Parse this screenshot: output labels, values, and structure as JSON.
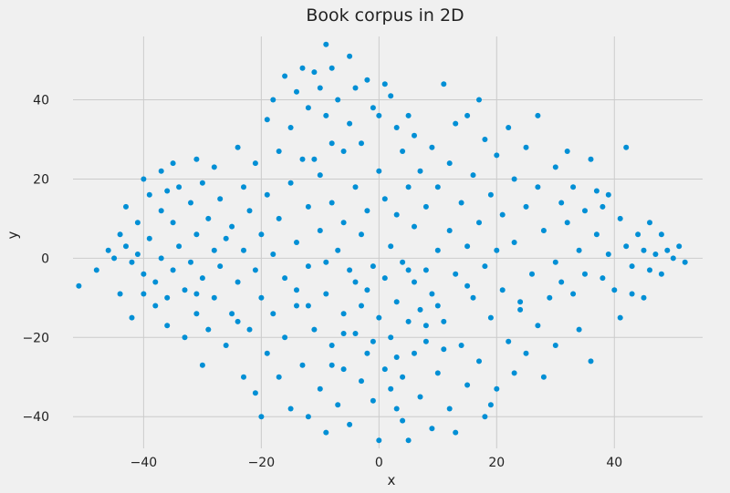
{
  "chart_data": {
    "type": "scatter",
    "title": "Book corpus in 2D",
    "xlabel": "x",
    "ylabel": "y",
    "xlim": [
      -52,
      55
    ],
    "ylim": [
      -48,
      56
    ],
    "xticks": [
      -40,
      -20,
      0,
      20,
      40
    ],
    "yticks": [
      -40,
      -20,
      0,
      20,
      40
    ],
    "xtick_labels": [
      "−40",
      "−20",
      "0",
      "20",
      "40"
    ],
    "ytick_labels": [
      "−40",
      "−20",
      "0",
      "20",
      "40"
    ],
    "grid": true,
    "colors": {
      "point": "#008fd5",
      "background": "#f0f0f0",
      "grid": "#cbcbcb"
    },
    "series": [
      {
        "points": [
          [
            -51,
            -7
          ],
          [
            -48,
            -3
          ],
          [
            -46,
            2
          ],
          [
            -45,
            0
          ],
          [
            -44,
            6
          ],
          [
            -44,
            -9
          ],
          [
            -43,
            13
          ],
          [
            -43,
            3
          ],
          [
            -42,
            -1
          ],
          [
            -42,
            -15
          ],
          [
            -41,
            9
          ],
          [
            -41,
            1
          ],
          [
            -40,
            20
          ],
          [
            -40,
            -4
          ],
          [
            -40,
            -9
          ],
          [
            -39,
            16
          ],
          [
            -39,
            5
          ],
          [
            -38,
            -6
          ],
          [
            -38,
            -12
          ],
          [
            -37,
            22
          ],
          [
            -37,
            12
          ],
          [
            -37,
            0
          ],
          [
            -36,
            -10
          ],
          [
            -36,
            -17
          ],
          [
            -35,
            24
          ],
          [
            -35,
            9
          ],
          [
            -35,
            -3
          ],
          [
            -34,
            18
          ],
          [
            -34,
            3
          ],
          [
            -33,
            -8
          ],
          [
            -33,
            -20
          ],
          [
            -32,
            14
          ],
          [
            -32,
            -1
          ],
          [
            -31,
            25
          ],
          [
            -31,
            6
          ],
          [
            -31,
            -14
          ],
          [
            -30,
            19
          ],
          [
            -30,
            -5
          ],
          [
            -30,
            -27
          ],
          [
            -29,
            10
          ],
          [
            -29,
            -18
          ],
          [
            -28,
            23
          ],
          [
            -28,
            2
          ],
          [
            -28,
            -10
          ],
          [
            -27,
            15
          ],
          [
            -27,
            -2
          ],
          [
            -26,
            -22
          ],
          [
            -25,
            8
          ],
          [
            -25,
            -14
          ],
          [
            -24,
            28
          ],
          [
            -24,
            -6
          ],
          [
            -23,
            18
          ],
          [
            -23,
            2
          ],
          [
            -23,
            -30
          ],
          [
            -22,
            12
          ],
          [
            -22,
            -18
          ],
          [
            -21,
            24
          ],
          [
            -21,
            -3
          ],
          [
            -21,
            -34
          ],
          [
            -20,
            6
          ],
          [
            -20,
            -10
          ],
          [
            -19,
            35
          ],
          [
            -19,
            16
          ],
          [
            -19,
            -24
          ],
          [
            -18,
            40
          ],
          [
            -18,
            1
          ],
          [
            -18,
            -14
          ],
          [
            -17,
            27
          ],
          [
            -17,
            10
          ],
          [
            -17,
            -30
          ],
          [
            -16,
            46
          ],
          [
            -16,
            -5
          ],
          [
            -16,
            -20
          ],
          [
            -15,
            33
          ],
          [
            -15,
            19
          ],
          [
            -15,
            -38
          ],
          [
            -14,
            42
          ],
          [
            -14,
            4
          ],
          [
            -14,
            -12
          ],
          [
            -13,
            48
          ],
          [
            -13,
            25
          ],
          [
            -13,
            -27
          ],
          [
            -12,
            38
          ],
          [
            -12,
            13
          ],
          [
            -12,
            -2
          ],
          [
            -12,
            -40
          ],
          [
            -11,
            47
          ],
          [
            -11,
            -18
          ],
          [
            -10,
            43
          ],
          [
            -10,
            21
          ],
          [
            -10,
            7
          ],
          [
            -10,
            -33
          ],
          [
            -9,
            54
          ],
          [
            -9,
            36
          ],
          [
            -9,
            -9
          ],
          [
            -9,
            -44
          ],
          [
            -8,
            48
          ],
          [
            -8,
            29
          ],
          [
            -8,
            14
          ],
          [
            -8,
            -22
          ],
          [
            -7,
            40
          ],
          [
            -7,
            2
          ],
          [
            -7,
            -37
          ],
          [
            -6,
            27
          ],
          [
            -6,
            9
          ],
          [
            -6,
            -14
          ],
          [
            -6,
            -28
          ],
          [
            -5,
            51
          ],
          [
            -5,
            34
          ],
          [
            -5,
            -3
          ],
          [
            -5,
            -42
          ],
          [
            -4,
            43
          ],
          [
            -4,
            18
          ],
          [
            -4,
            -19
          ],
          [
            -3,
            29
          ],
          [
            -3,
            6
          ],
          [
            -3,
            -31
          ],
          [
            -2,
            45
          ],
          [
            -2,
            12
          ],
          [
            -2,
            -8
          ],
          [
            -2,
            -24
          ],
          [
            -1,
            38
          ],
          [
            -1,
            -2
          ],
          [
            -1,
            -36
          ],
          [
            0,
            36
          ],
          [
            0,
            22
          ],
          [
            0,
            -15
          ],
          [
            0,
            -46
          ],
          [
            1,
            44
          ],
          [
            1,
            15
          ],
          [
            1,
            -5
          ],
          [
            1,
            -28
          ],
          [
            2,
            41
          ],
          [
            2,
            3
          ],
          [
            2,
            -20
          ],
          [
            3,
            33
          ],
          [
            3,
            11
          ],
          [
            3,
            -11
          ],
          [
            3,
            -38
          ],
          [
            4,
            27
          ],
          [
            4,
            -1
          ],
          [
            4,
            -30
          ],
          [
            5,
            36
          ],
          [
            5,
            18
          ],
          [
            5,
            -16
          ],
          [
            5,
            -46
          ],
          [
            6,
            8
          ],
          [
            6,
            -6
          ],
          [
            6,
            -24
          ],
          [
            7,
            22
          ],
          [
            7,
            -13
          ],
          [
            7,
            -35
          ],
          [
            8,
            13
          ],
          [
            8,
            -3
          ],
          [
            8,
            -21
          ],
          [
            9,
            28
          ],
          [
            9,
            -9
          ],
          [
            9,
            -43
          ],
          [
            10,
            18
          ],
          [
            10,
            2
          ],
          [
            10,
            -29
          ],
          [
            11,
            44
          ],
          [
            11,
            -16
          ],
          [
            12,
            24
          ],
          [
            12,
            7
          ],
          [
            12,
            -38
          ],
          [
            13,
            34
          ],
          [
            13,
            -4
          ],
          [
            13,
            -44
          ],
          [
            14,
            14
          ],
          [
            14,
            -22
          ],
          [
            15,
            36
          ],
          [
            15,
            3
          ],
          [
            15,
            -32
          ],
          [
            16,
            21
          ],
          [
            16,
            -10
          ],
          [
            17,
            40
          ],
          [
            17,
            9
          ],
          [
            17,
            -26
          ],
          [
            18,
            30
          ],
          [
            18,
            -2
          ],
          [
            18,
            -40
          ],
          [
            19,
            16
          ],
          [
            19,
            -15
          ],
          [
            20,
            26
          ],
          [
            20,
            2
          ],
          [
            20,
            -33
          ],
          [
            21,
            11
          ],
          [
            21,
            -8
          ],
          [
            22,
            33
          ],
          [
            22,
            -21
          ],
          [
            23,
            20
          ],
          [
            23,
            4
          ],
          [
            23,
            -29
          ],
          [
            24,
            -11
          ],
          [
            25,
            28
          ],
          [
            25,
            13
          ],
          [
            25,
            -24
          ],
          [
            26,
            -4
          ],
          [
            27,
            36
          ],
          [
            27,
            18
          ],
          [
            27,
            -17
          ],
          [
            28,
            7
          ],
          [
            28,
            -30
          ],
          [
            29,
            -10
          ],
          [
            30,
            23
          ],
          [
            30,
            -1
          ],
          [
            30,
            -22
          ],
          [
            31,
            14
          ],
          [
            31,
            -6
          ],
          [
            32,
            27
          ],
          [
            32,
            9
          ],
          [
            33,
            -9
          ],
          [
            33,
            18
          ],
          [
            34,
            2
          ],
          [
            35,
            12
          ],
          [
            35,
            -4
          ],
          [
            36,
            25
          ],
          [
            36,
            -26
          ],
          [
            37,
            17
          ],
          [
            37,
            6
          ],
          [
            38,
            13
          ],
          [
            38,
            -5
          ],
          [
            39,
            16
          ],
          [
            39,
            1
          ],
          [
            40,
            -8
          ],
          [
            41,
            10
          ],
          [
            41,
            -15
          ],
          [
            42,
            28
          ],
          [
            42,
            3
          ],
          [
            43,
            -2
          ],
          [
            43,
            -9
          ],
          [
            44,
            6
          ],
          [
            45,
            2
          ],
          [
            45,
            -10
          ],
          [
            46,
            9
          ],
          [
            46,
            -3
          ],
          [
            47,
            1
          ],
          [
            48,
            6
          ],
          [
            48,
            -4
          ],
          [
            49,
            2
          ],
          [
            50,
            0
          ],
          [
            51,
            3
          ],
          [
            52,
            -1
          ],
          [
            -36,
            17
          ],
          [
            -26,
            5
          ],
          [
            -14,
            -8
          ],
          [
            -3,
            -12
          ],
          [
            11,
            -23
          ],
          [
            24,
            -13
          ],
          [
            -20,
            -40
          ],
          [
            4,
            -41
          ],
          [
            -31,
            -9
          ],
          [
            19,
            -37
          ],
          [
            34,
            -18
          ],
          [
            -11,
            25
          ],
          [
            6,
            31
          ],
          [
            -24,
            -16
          ],
          [
            15,
            -7
          ],
          [
            -6,
            -19
          ],
          [
            -1,
            -21
          ],
          [
            2,
            -33
          ],
          [
            -8,
            -27
          ],
          [
            8,
            -17
          ],
          [
            -4,
            -6
          ],
          [
            10,
            -12
          ],
          [
            -12,
            -12
          ],
          [
            3,
            -25
          ],
          [
            -9,
            -1
          ],
          [
            5,
            -3
          ]
        ]
      }
    ]
  }
}
